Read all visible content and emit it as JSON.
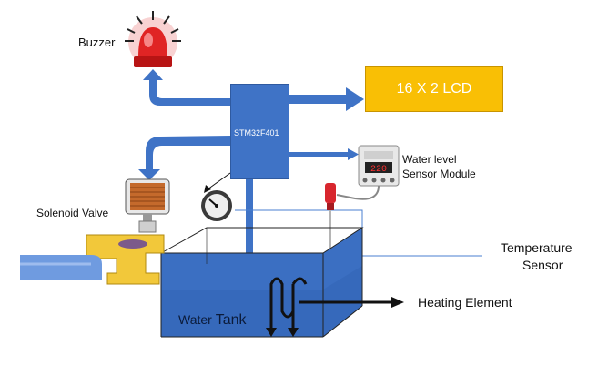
{
  "labels": {
    "buzzer": "Buzzer",
    "lcd": "16 X 2 LCD",
    "mcu": "STM32F401",
    "water_level_line1": "Water level",
    "water_level_line2": "Sensor Module",
    "solenoid": "Solenoid Valve",
    "temp_line1": "Temperature",
    "temp_line2": "Sensor",
    "heating": "Heating Element",
    "tank_a": "Water",
    "tank_b": "Tank"
  },
  "lcd_reading": "220",
  "colors": {
    "arrow_blue": "#3f73c6",
    "lcd_yellow": "#f9bf05",
    "water": "#3b6fc2",
    "valve_brass": "#f2c83a",
    "buzzer_red": "#e02424",
    "wire_blue": "#4a7fd0"
  }
}
